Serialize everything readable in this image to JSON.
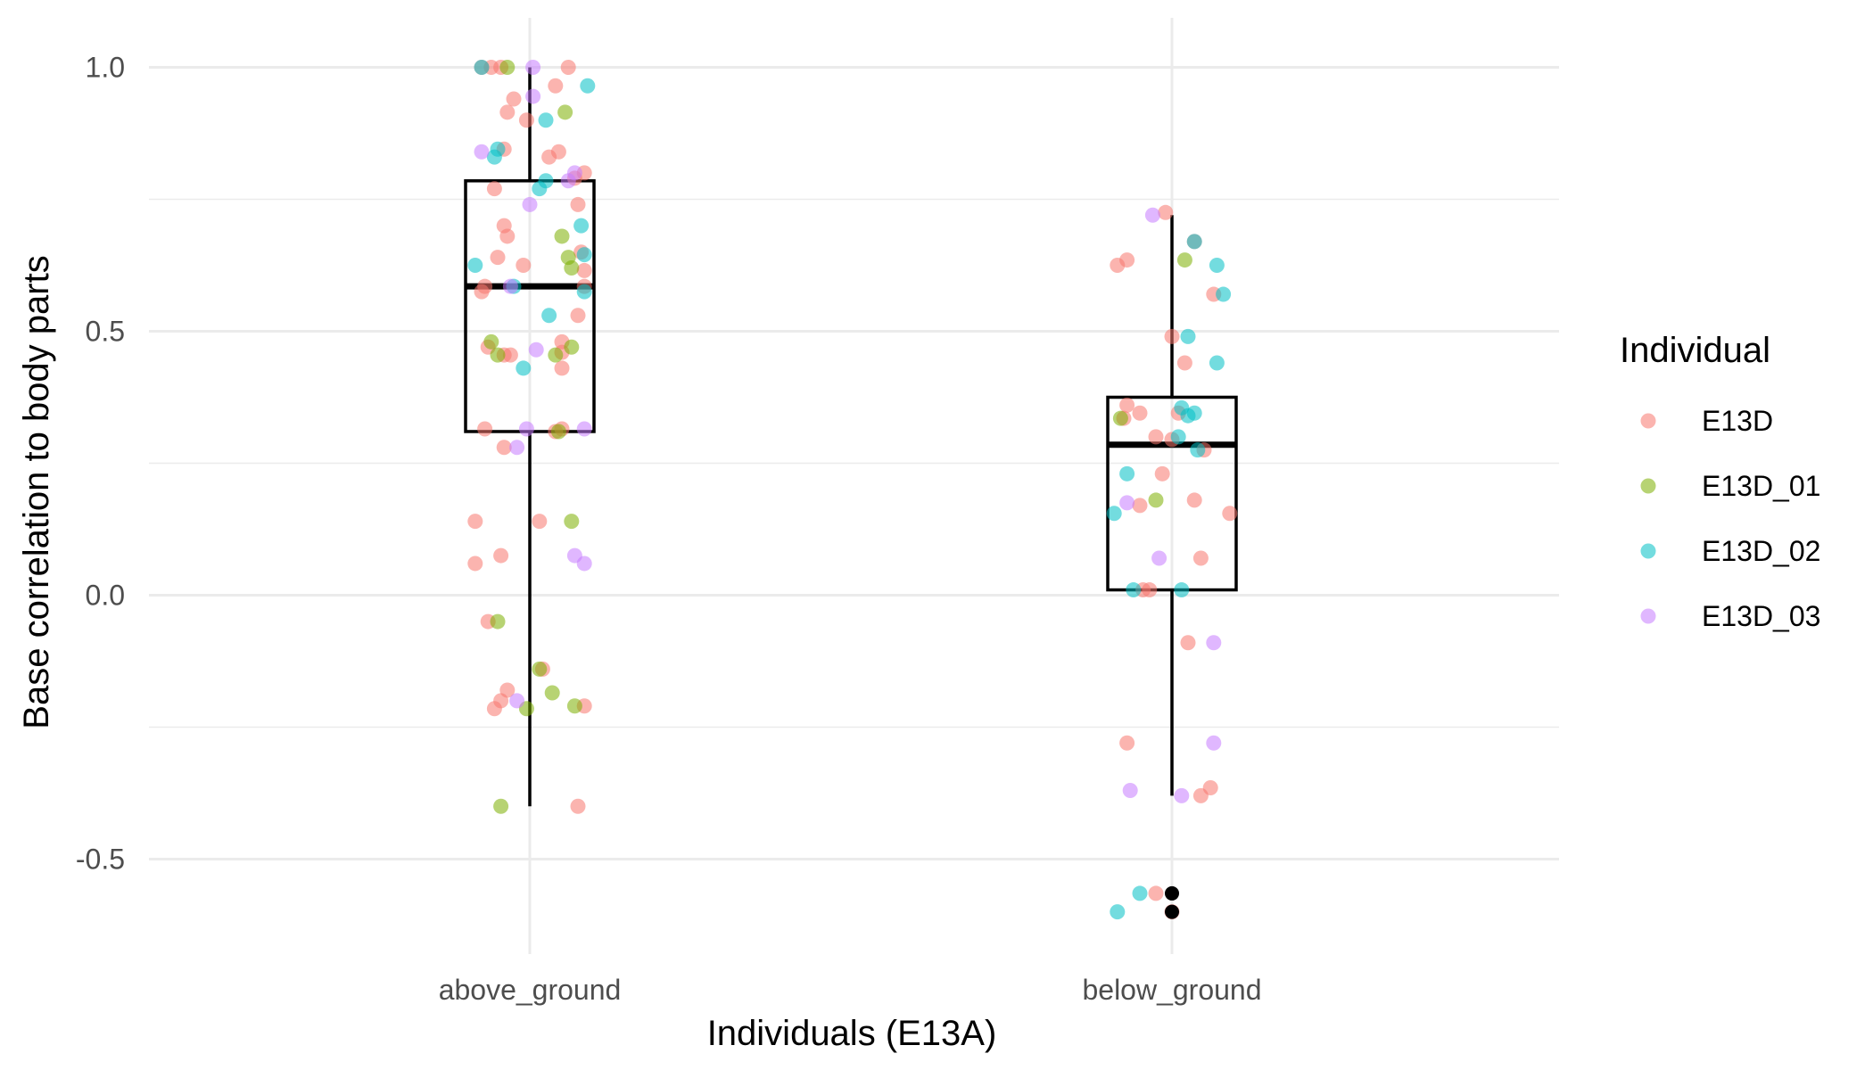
{
  "chart_data": {
    "type": "box",
    "xlabel": "Individuals (E13A)",
    "ylabel": "Base correlation to body parts",
    "categories": [
      "above_ground",
      "below_ground"
    ],
    "ylim": [
      -0.68,
      1.06
    ],
    "y_ticks": [
      {
        "value": 1.0,
        "label": "1.0"
      },
      {
        "value": 0.5,
        "label": "0.5"
      },
      {
        "value": 0.0,
        "label": "0.0"
      },
      {
        "value": -0.5,
        "label": "-0.5"
      }
    ],
    "grid": true,
    "legend": {
      "title": "Individual",
      "placement": "right",
      "entries": [
        {
          "label": "E13D",
          "color": "#F8766D"
        },
        {
          "label": "E13D_01",
          "color": "#7CAE00"
        },
        {
          "label": "E13D_02",
          "color": "#00BFC4"
        },
        {
          "label": "E13D_03",
          "color": "#C77CFF"
        }
      ]
    },
    "boxes": [
      {
        "category": "above_ground",
        "q1": 0.31,
        "median": 0.585,
        "q3": 0.785,
        "whisker_low": -0.4,
        "whisker_high": 1.0,
        "outliers": []
      },
      {
        "category": "below_ground",
        "q1": 0.01,
        "median": 0.285,
        "q3": 0.375,
        "whisker_low": -0.38,
        "whisker_high": 0.72,
        "outliers": [
          -0.565,
          -0.6
        ]
      }
    ],
    "points": [
      {
        "category": "above_ground",
        "group": "E13D",
        "jitter": -0.15,
        "y": 1.0
      },
      {
        "category": "above_ground",
        "group": "E13D",
        "jitter": -0.12,
        "y": 1.0
      },
      {
        "category": "above_ground",
        "group": "E13D",
        "jitter": -0.09,
        "y": 1.0
      },
      {
        "category": "above_ground",
        "group": "E13D",
        "jitter": 0.12,
        "y": 1.0
      },
      {
        "category": "above_ground",
        "group": "E13D",
        "jitter": -0.05,
        "y": 0.94
      },
      {
        "category": "above_ground",
        "group": "E13D",
        "jitter": 0.08,
        "y": 0.965
      },
      {
        "category": "above_ground",
        "group": "E13D",
        "jitter": -0.07,
        "y": 0.915
      },
      {
        "category": "above_ground",
        "group": "E13D",
        "jitter": -0.01,
        "y": 0.9
      },
      {
        "category": "above_ground",
        "group": "E13D",
        "jitter": -0.08,
        "y": 0.845
      },
      {
        "category": "above_ground",
        "group": "E13D",
        "jitter": 0.09,
        "y": 0.84
      },
      {
        "category": "above_ground",
        "group": "E13D",
        "jitter": 0.06,
        "y": 0.83
      },
      {
        "category": "above_ground",
        "group": "E13D",
        "jitter": 0.17,
        "y": 0.8
      },
      {
        "category": "above_ground",
        "group": "E13D",
        "jitter": 0.14,
        "y": 0.79
      },
      {
        "category": "above_ground",
        "group": "E13D",
        "jitter": -0.11,
        "y": 0.77
      },
      {
        "category": "above_ground",
        "group": "E13D",
        "jitter": 0.15,
        "y": 0.74
      },
      {
        "category": "above_ground",
        "group": "E13D",
        "jitter": -0.08,
        "y": 0.7
      },
      {
        "category": "above_ground",
        "group": "E13D",
        "jitter": -0.07,
        "y": 0.68
      },
      {
        "category": "above_ground",
        "group": "E13D",
        "jitter": 0.16,
        "y": 0.65
      },
      {
        "category": "above_ground",
        "group": "E13D",
        "jitter": -0.1,
        "y": 0.64
      },
      {
        "category": "above_ground",
        "group": "E13D",
        "jitter": -0.02,
        "y": 0.625
      },
      {
        "category": "above_ground",
        "group": "E13D",
        "jitter": 0.17,
        "y": 0.615
      },
      {
        "category": "above_ground",
        "group": "E13D",
        "jitter": -0.14,
        "y": 0.585
      },
      {
        "category": "above_ground",
        "group": "E13D",
        "jitter": -0.15,
        "y": 0.575
      },
      {
        "category": "above_ground",
        "group": "E13D",
        "jitter": 0.17,
        "y": 0.585
      },
      {
        "category": "above_ground",
        "group": "E13D",
        "jitter": 0.15,
        "y": 0.53
      },
      {
        "category": "above_ground",
        "group": "E13D",
        "jitter": 0.1,
        "y": 0.48
      },
      {
        "category": "above_ground",
        "group": "E13D",
        "jitter": -0.13,
        "y": 0.47
      },
      {
        "category": "above_ground",
        "group": "E13D",
        "jitter": 0.1,
        "y": 0.46
      },
      {
        "category": "above_ground",
        "group": "E13D",
        "jitter": -0.08,
        "y": 0.455
      },
      {
        "category": "above_ground",
        "group": "E13D",
        "jitter": -0.06,
        "y": 0.455
      },
      {
        "category": "above_ground",
        "group": "E13D",
        "jitter": 0.1,
        "y": 0.43
      },
      {
        "category": "above_ground",
        "group": "E13D",
        "jitter": -0.14,
        "y": 0.315
      },
      {
        "category": "above_ground",
        "group": "E13D",
        "jitter": 0.08,
        "y": 0.31
      },
      {
        "category": "above_ground",
        "group": "E13D",
        "jitter": 0.1,
        "y": 0.315
      },
      {
        "category": "above_ground",
        "group": "E13D",
        "jitter": -0.08,
        "y": 0.28
      },
      {
        "category": "above_ground",
        "group": "E13D",
        "jitter": -0.17,
        "y": 0.14
      },
      {
        "category": "above_ground",
        "group": "E13D",
        "jitter": 0.03,
        "y": 0.14
      },
      {
        "category": "above_ground",
        "group": "E13D",
        "jitter": -0.09,
        "y": 0.075
      },
      {
        "category": "above_ground",
        "group": "E13D",
        "jitter": -0.17,
        "y": 0.06
      },
      {
        "category": "above_ground",
        "group": "E13D",
        "jitter": -0.13,
        "y": -0.05
      },
      {
        "category": "above_ground",
        "group": "E13D",
        "jitter": 0.04,
        "y": -0.14
      },
      {
        "category": "above_ground",
        "group": "E13D",
        "jitter": -0.07,
        "y": -0.18
      },
      {
        "category": "above_ground",
        "group": "E13D",
        "jitter": -0.09,
        "y": -0.2
      },
      {
        "category": "above_ground",
        "group": "E13D",
        "jitter": -0.11,
        "y": -0.215
      },
      {
        "category": "above_ground",
        "group": "E13D",
        "jitter": 0.17,
        "y": -0.21
      },
      {
        "category": "above_ground",
        "group": "E13D",
        "jitter": 0.15,
        "y": -0.4
      },
      {
        "category": "above_ground",
        "group": "E13D_01",
        "jitter": -0.07,
        "y": 1.0
      },
      {
        "category": "above_ground",
        "group": "E13D_01",
        "jitter": 0.11,
        "y": 0.915
      },
      {
        "category": "above_ground",
        "group": "E13D_01",
        "jitter": 0.1,
        "y": 0.68
      },
      {
        "category": "above_ground",
        "group": "E13D_01",
        "jitter": 0.12,
        "y": 0.64
      },
      {
        "category": "above_ground",
        "group": "E13D_01",
        "jitter": 0.13,
        "y": 0.62
      },
      {
        "category": "above_ground",
        "group": "E13D_01",
        "jitter": -0.12,
        "y": 0.48
      },
      {
        "category": "above_ground",
        "group": "E13D_01",
        "jitter": 0.13,
        "y": 0.47
      },
      {
        "category": "above_ground",
        "group": "E13D_01",
        "jitter": 0.08,
        "y": 0.455
      },
      {
        "category": "above_ground",
        "group": "E13D_01",
        "jitter": -0.1,
        "y": 0.455
      },
      {
        "category": "above_ground",
        "group": "E13D_01",
        "jitter": 0.09,
        "y": 0.31
      },
      {
        "category": "above_ground",
        "group": "E13D_01",
        "jitter": 0.13,
        "y": 0.14
      },
      {
        "category": "above_ground",
        "group": "E13D_01",
        "jitter": -0.1,
        "y": -0.05
      },
      {
        "category": "above_ground",
        "group": "E13D_01",
        "jitter": 0.03,
        "y": -0.14
      },
      {
        "category": "above_ground",
        "group": "E13D_01",
        "jitter": 0.07,
        "y": -0.185
      },
      {
        "category": "above_ground",
        "group": "E13D_01",
        "jitter": -0.01,
        "y": -0.215
      },
      {
        "category": "above_ground",
        "group": "E13D_01",
        "jitter": 0.14,
        "y": -0.21
      },
      {
        "category": "above_ground",
        "group": "E13D_01",
        "jitter": -0.09,
        "y": -0.4
      },
      {
        "category": "above_ground",
        "group": "E13D_02",
        "jitter": -0.15,
        "y": 1.0
      },
      {
        "category": "above_ground",
        "group": "E13D_02",
        "jitter": 0.18,
        "y": 0.965
      },
      {
        "category": "above_ground",
        "group": "E13D_02",
        "jitter": 0.05,
        "y": 0.9
      },
      {
        "category": "above_ground",
        "group": "E13D_02",
        "jitter": -0.1,
        "y": 0.845
      },
      {
        "category": "above_ground",
        "group": "E13D_02",
        "jitter": -0.11,
        "y": 0.83
      },
      {
        "category": "above_ground",
        "group": "E13D_02",
        "jitter": 0.05,
        "y": 0.785
      },
      {
        "category": "above_ground",
        "group": "E13D_02",
        "jitter": 0.03,
        "y": 0.77
      },
      {
        "category": "above_ground",
        "group": "E13D_02",
        "jitter": 0.16,
        "y": 0.7
      },
      {
        "category": "above_ground",
        "group": "E13D_02",
        "jitter": 0.17,
        "y": 0.645
      },
      {
        "category": "above_ground",
        "group": "E13D_02",
        "jitter": -0.17,
        "y": 0.625
      },
      {
        "category": "above_ground",
        "group": "E13D_02",
        "jitter": -0.05,
        "y": 0.585
      },
      {
        "category": "above_ground",
        "group": "E13D_02",
        "jitter": 0.17,
        "y": 0.575
      },
      {
        "category": "above_ground",
        "group": "E13D_02",
        "jitter": 0.06,
        "y": 0.53
      },
      {
        "category": "above_ground",
        "group": "E13D_02",
        "jitter": -0.02,
        "y": 0.43
      },
      {
        "category": "above_ground",
        "group": "E13D_03",
        "jitter": 0.01,
        "y": 1.0
      },
      {
        "category": "above_ground",
        "group": "E13D_03",
        "jitter": 0.01,
        "y": 0.945
      },
      {
        "category": "above_ground",
        "group": "E13D_03",
        "jitter": -0.15,
        "y": 0.84
      },
      {
        "category": "above_ground",
        "group": "E13D_03",
        "jitter": 0.14,
        "y": 0.8
      },
      {
        "category": "above_ground",
        "group": "E13D_03",
        "jitter": 0.12,
        "y": 0.785
      },
      {
        "category": "above_ground",
        "group": "E13D_03",
        "jitter": 0.0,
        "y": 0.74
      },
      {
        "category": "above_ground",
        "group": "E13D_03",
        "jitter": -0.06,
        "y": 0.585
      },
      {
        "category": "above_ground",
        "group": "E13D_03",
        "jitter": 0.02,
        "y": 0.465
      },
      {
        "category": "above_ground",
        "group": "E13D_03",
        "jitter": -0.01,
        "y": 0.315
      },
      {
        "category": "above_ground",
        "group": "E13D_03",
        "jitter": 0.17,
        "y": 0.315
      },
      {
        "category": "above_ground",
        "group": "E13D_03",
        "jitter": -0.04,
        "y": 0.28
      },
      {
        "category": "above_ground",
        "group": "E13D_03",
        "jitter": 0.14,
        "y": 0.075
      },
      {
        "category": "above_ground",
        "group": "E13D_03",
        "jitter": 0.17,
        "y": 0.06
      },
      {
        "category": "above_ground",
        "group": "E13D_03",
        "jitter": -0.04,
        "y": -0.2
      },
      {
        "category": "below_ground",
        "group": "E13D",
        "jitter": -0.02,
        "y": 0.725
      },
      {
        "category": "below_ground",
        "group": "E13D",
        "jitter": 0.07,
        "y": 0.67
      },
      {
        "category": "below_ground",
        "group": "E13D",
        "jitter": -0.14,
        "y": 0.635
      },
      {
        "category": "below_ground",
        "group": "E13D",
        "jitter": -0.17,
        "y": 0.625
      },
      {
        "category": "below_ground",
        "group": "E13D",
        "jitter": 0.13,
        "y": 0.57
      },
      {
        "category": "below_ground",
        "group": "E13D",
        "jitter": 0.0,
        "y": 0.49
      },
      {
        "category": "below_ground",
        "group": "E13D",
        "jitter": 0.04,
        "y": 0.44
      },
      {
        "category": "below_ground",
        "group": "E13D",
        "jitter": -0.14,
        "y": 0.36
      },
      {
        "category": "below_ground",
        "group": "E13D",
        "jitter": -0.1,
        "y": 0.345
      },
      {
        "category": "below_ground",
        "group": "E13D",
        "jitter": 0.02,
        "y": 0.345
      },
      {
        "category": "below_ground",
        "group": "E13D",
        "jitter": -0.15,
        "y": 0.335
      },
      {
        "category": "below_ground",
        "group": "E13D",
        "jitter": -0.05,
        "y": 0.3
      },
      {
        "category": "below_ground",
        "group": "E13D",
        "jitter": 0.0,
        "y": 0.295
      },
      {
        "category": "below_ground",
        "group": "E13D",
        "jitter": 0.1,
        "y": 0.275
      },
      {
        "category": "below_ground",
        "group": "E13D",
        "jitter": -0.03,
        "y": 0.23
      },
      {
        "category": "below_ground",
        "group": "E13D",
        "jitter": 0.07,
        "y": 0.18
      },
      {
        "category": "below_ground",
        "group": "E13D",
        "jitter": -0.1,
        "y": 0.17
      },
      {
        "category": "below_ground",
        "group": "E13D",
        "jitter": 0.18,
        "y": 0.155
      },
      {
        "category": "below_ground",
        "group": "E13D",
        "jitter": 0.09,
        "y": 0.07
      },
      {
        "category": "below_ground",
        "group": "E13D",
        "jitter": -0.09,
        "y": 0.01
      },
      {
        "category": "below_ground",
        "group": "E13D",
        "jitter": -0.07,
        "y": 0.01
      },
      {
        "category": "below_ground",
        "group": "E13D",
        "jitter": 0.05,
        "y": -0.09
      },
      {
        "category": "below_ground",
        "group": "E13D",
        "jitter": -0.14,
        "y": -0.28
      },
      {
        "category": "below_ground",
        "group": "E13D",
        "jitter": 0.12,
        "y": -0.365
      },
      {
        "category": "below_ground",
        "group": "E13D",
        "jitter": 0.09,
        "y": -0.38
      },
      {
        "category": "below_ground",
        "group": "E13D",
        "jitter": -0.05,
        "y": -0.565
      },
      {
        "category": "below_ground",
        "group": "E13D",
        "jitter": 0.0,
        "y": -0.6
      },
      {
        "category": "below_ground",
        "group": "E13D_01",
        "jitter": 0.04,
        "y": 0.635
      },
      {
        "category": "below_ground",
        "group": "E13D_01",
        "jitter": -0.16,
        "y": 0.335
      },
      {
        "category": "below_ground",
        "group": "E13D_01",
        "jitter": -0.05,
        "y": 0.18
      },
      {
        "category": "below_ground",
        "group": "E13D_02",
        "jitter": 0.07,
        "y": 0.67
      },
      {
        "category": "below_ground",
        "group": "E13D_02",
        "jitter": 0.14,
        "y": 0.625
      },
      {
        "category": "below_ground",
        "group": "E13D_02",
        "jitter": 0.16,
        "y": 0.57
      },
      {
        "category": "below_ground",
        "group": "E13D_02",
        "jitter": 0.05,
        "y": 0.49
      },
      {
        "category": "below_ground",
        "group": "E13D_02",
        "jitter": 0.14,
        "y": 0.44
      },
      {
        "category": "below_ground",
        "group": "E13D_02",
        "jitter": 0.03,
        "y": 0.355
      },
      {
        "category": "below_ground",
        "group": "E13D_02",
        "jitter": 0.07,
        "y": 0.345
      },
      {
        "category": "below_ground",
        "group": "E13D_02",
        "jitter": 0.05,
        "y": 0.34
      },
      {
        "category": "below_ground",
        "group": "E13D_02",
        "jitter": 0.02,
        "y": 0.3
      },
      {
        "category": "below_ground",
        "group": "E13D_02",
        "jitter": 0.08,
        "y": 0.275
      },
      {
        "category": "below_ground",
        "group": "E13D_02",
        "jitter": -0.14,
        "y": 0.23
      },
      {
        "category": "below_ground",
        "group": "E13D_02",
        "jitter": -0.18,
        "y": 0.155
      },
      {
        "category": "below_ground",
        "group": "E13D_02",
        "jitter": -0.12,
        "y": 0.01
      },
      {
        "category": "below_ground",
        "group": "E13D_02",
        "jitter": 0.03,
        "y": 0.01
      },
      {
        "category": "below_ground",
        "group": "E13D_02",
        "jitter": -0.1,
        "y": -0.565
      },
      {
        "category": "below_ground",
        "group": "E13D_02",
        "jitter": -0.17,
        "y": -0.6
      },
      {
        "category": "below_ground",
        "group": "E13D_03",
        "jitter": -0.06,
        "y": 0.72
      },
      {
        "category": "below_ground",
        "group": "E13D_03",
        "jitter": -0.14,
        "y": 0.175
      },
      {
        "category": "below_ground",
        "group": "E13D_03",
        "jitter": -0.04,
        "y": 0.07
      },
      {
        "category": "below_ground",
        "group": "E13D_03",
        "jitter": 0.13,
        "y": -0.09
      },
      {
        "category": "below_ground",
        "group": "E13D_03",
        "jitter": 0.13,
        "y": -0.28
      },
      {
        "category": "below_ground",
        "group": "E13D_03",
        "jitter": -0.13,
        "y": -0.37
      },
      {
        "category": "below_ground",
        "group": "E13D_03",
        "jitter": 0.03,
        "y": -0.38
      }
    ]
  }
}
